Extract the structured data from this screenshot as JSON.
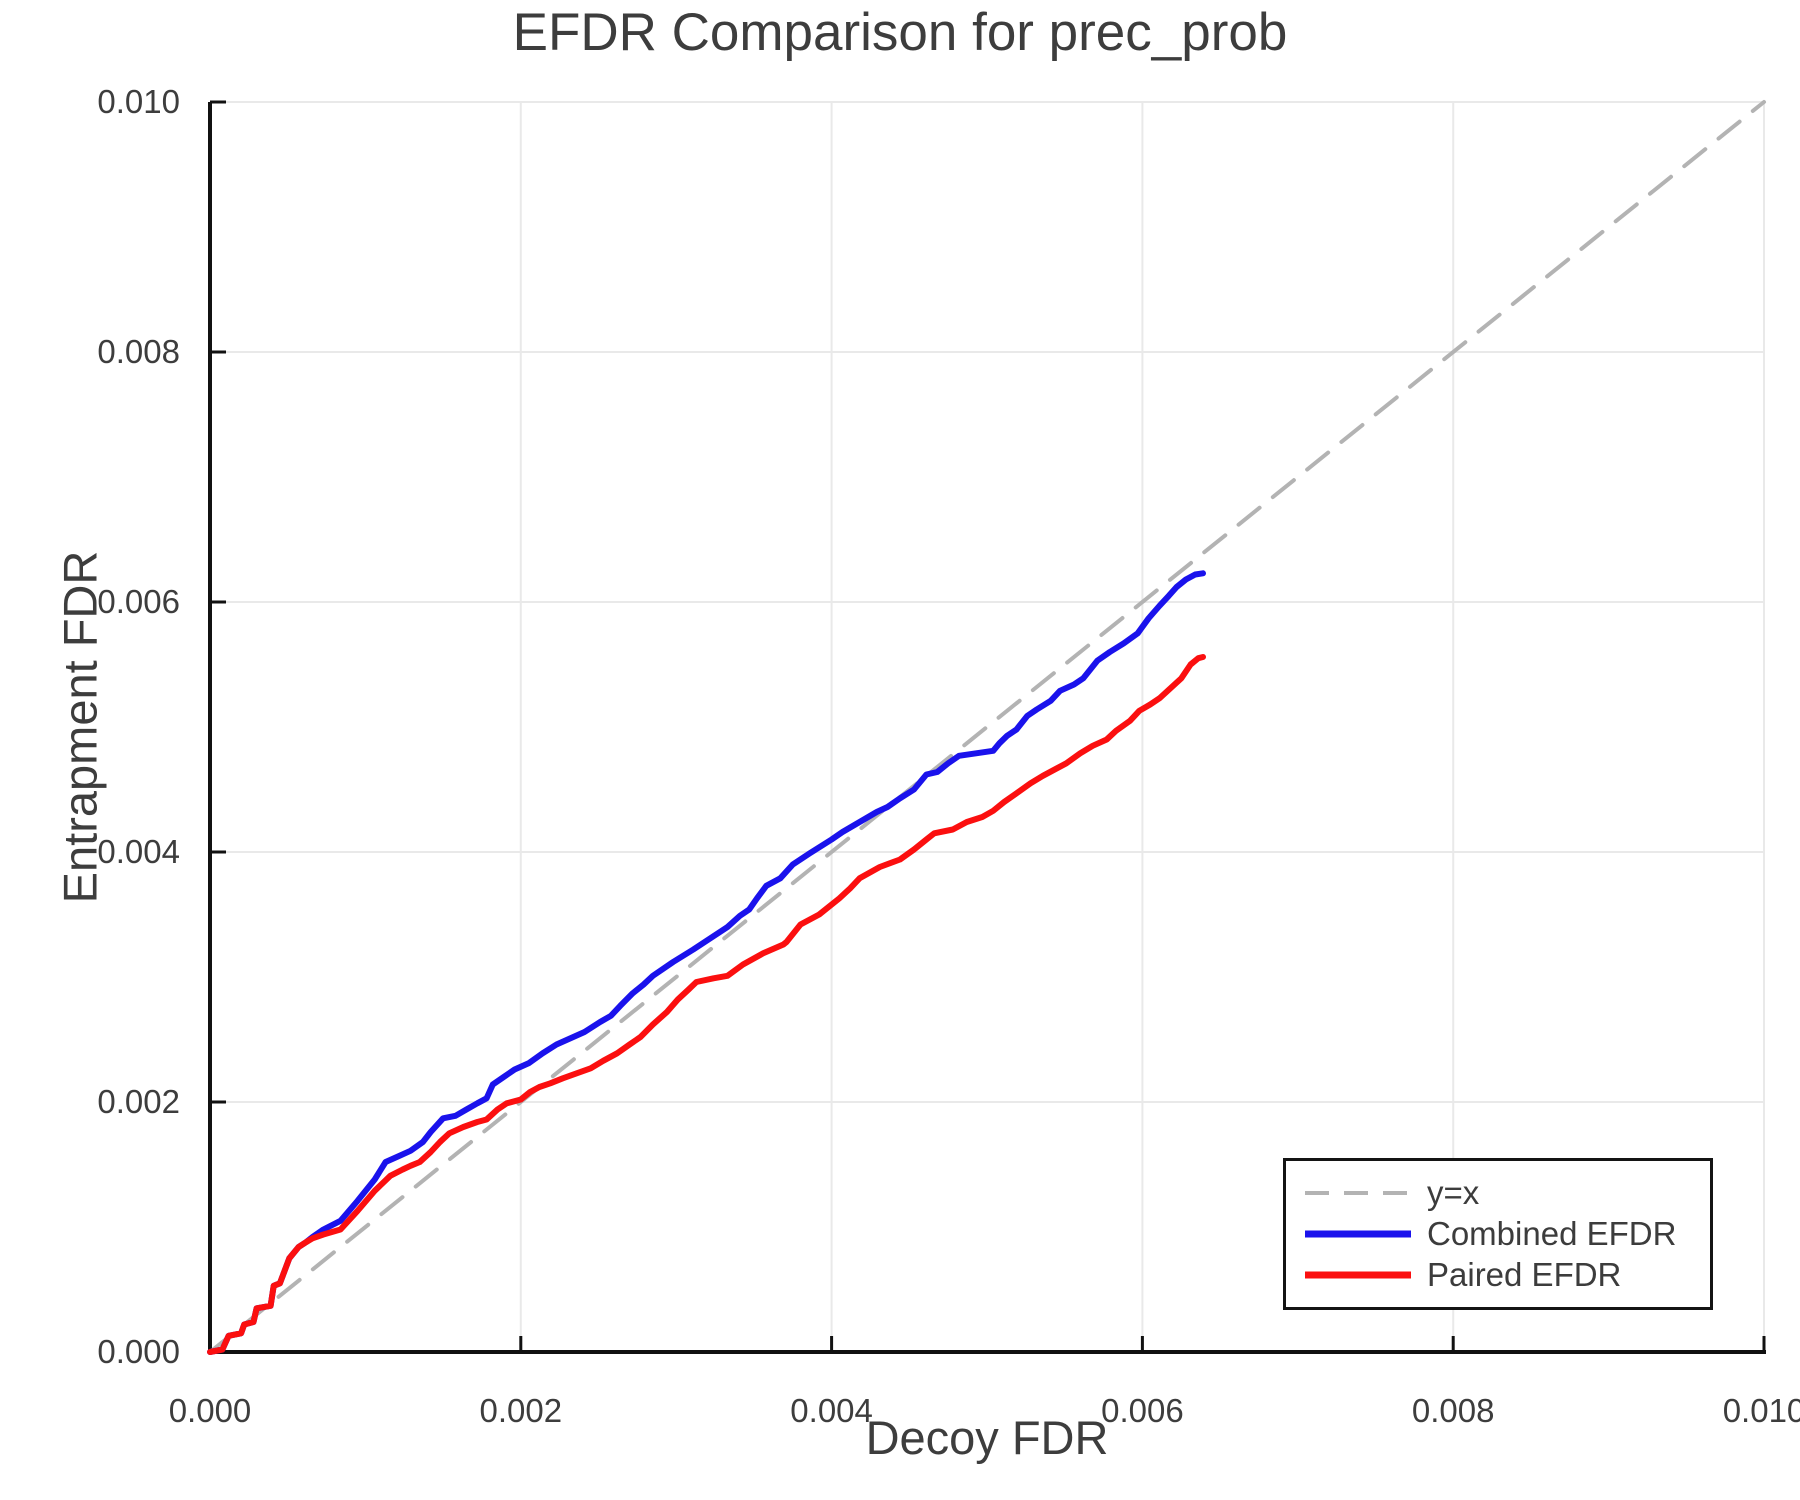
{
  "title": "EFDR Comparison for prec_prob",
  "colors": {
    "text": "#3d3d3d",
    "grid": "#e9e9e9",
    "axis": "#111111",
    "diagonal": "#b3b3b3",
    "combined": "#1a12ec",
    "paired": "#fb0f0f"
  },
  "chart_data": {
    "type": "line",
    "title": "EFDR Comparison for prec_prob",
    "xlabel": "Decoy FDR",
    "ylabel": "Entrapment FDR",
    "xlim": [
      0.0,
      0.01
    ],
    "ylim": [
      0.0,
      0.01
    ],
    "xticks": [
      "0.000",
      "0.002",
      "0.004",
      "0.006",
      "0.008",
      "0.010"
    ],
    "yticks": [
      "0.000",
      "0.002",
      "0.004",
      "0.006",
      "0.008",
      "0.010"
    ],
    "grid": true,
    "legend_position": "lower right",
    "series": [
      {
        "name": "y=x",
        "style": "dashed",
        "color": "#b3b3b3",
        "width": 4,
        "dash": "27 17",
        "points": [
          [
            0.0,
            0.0
          ],
          [
            0.01,
            0.01
          ]
        ]
      },
      {
        "name": "Combined EFDR",
        "style": "solid",
        "color": "#1a12ec",
        "width": 6,
        "dash": null,
        "points": [
          [
            0.0,
            0.0
          ],
          [
            8e-05,
            2e-05
          ],
          [
            0.00012,
            0.00013
          ],
          [
            0.0002,
            0.00015
          ],
          [
            0.00022,
            0.00022
          ],
          [
            0.00028,
            0.00024
          ],
          [
            0.0003,
            0.00035
          ],
          [
            0.00039,
            0.00037
          ],
          [
            0.00041,
            0.00053
          ],
          [
            0.00045,
            0.00055
          ],
          [
            0.00051,
            0.00075
          ],
          [
            0.00057,
            0.00084
          ],
          [
            0.00062,
            0.00088
          ],
          [
            0.00066,
            0.00092
          ],
          [
            0.00073,
            0.00098
          ],
          [
            0.00084,
            0.00105
          ],
          [
            0.00095,
            0.00121
          ],
          [
            0.00106,
            0.00138
          ],
          [
            0.00113,
            0.00152
          ],
          [
            0.00122,
            0.00157
          ],
          [
            0.00129,
            0.00161
          ],
          [
            0.00137,
            0.00168
          ],
          [
            0.00142,
            0.00176
          ],
          [
            0.0015,
            0.00187
          ],
          [
            0.00158,
            0.00189
          ],
          [
            0.00165,
            0.00194
          ],
          [
            0.00172,
            0.00199
          ],
          [
            0.00178,
            0.00203
          ],
          [
            0.00182,
            0.00214
          ],
          [
            0.00189,
            0.0022
          ],
          [
            0.00196,
            0.00226
          ],
          [
            0.00205,
            0.00231
          ],
          [
            0.00214,
            0.00239
          ],
          [
            0.00223,
            0.00246
          ],
          [
            0.00232,
            0.00251
          ],
          [
            0.00241,
            0.00256
          ],
          [
            0.00251,
            0.00264
          ],
          [
            0.00258,
            0.00269
          ],
          [
            0.00264,
            0.00277
          ],
          [
            0.00272,
            0.00287
          ],
          [
            0.00279,
            0.00294
          ],
          [
            0.00285,
            0.00301
          ],
          [
            0.00298,
            0.00312
          ],
          [
            0.00311,
            0.00322
          ],
          [
            0.00322,
            0.00331
          ],
          [
            0.00333,
            0.0034
          ],
          [
            0.00341,
            0.00349
          ],
          [
            0.00347,
            0.00354
          ],
          [
            0.00352,
            0.00363
          ],
          [
            0.00358,
            0.00373
          ],
          [
            0.00367,
            0.00379
          ],
          [
            0.00375,
            0.0039
          ],
          [
            0.00386,
            0.00399
          ],
          [
            0.004,
            0.0041
          ],
          [
            0.00407,
            0.00416
          ],
          [
            0.00418,
            0.00424
          ],
          [
            0.00429,
            0.00432
          ],
          [
            0.00436,
            0.00436
          ],
          [
            0.00444,
            0.00443
          ],
          [
            0.00453,
            0.0045
          ],
          [
            0.00461,
            0.00462
          ],
          [
            0.00468,
            0.00464
          ],
          [
            0.00475,
            0.00471
          ],
          [
            0.00482,
            0.00477
          ],
          [
            0.00493,
            0.00479
          ],
          [
            0.00504,
            0.00481
          ],
          [
            0.00508,
            0.00487
          ],
          [
            0.00513,
            0.00493
          ],
          [
            0.00519,
            0.00498
          ],
          [
            0.00526,
            0.00509
          ],
          [
            0.00532,
            0.00514
          ],
          [
            0.00541,
            0.00521
          ],
          [
            0.00547,
            0.00529
          ],
          [
            0.00556,
            0.00534
          ],
          [
            0.00562,
            0.00539
          ],
          [
            0.00571,
            0.00553
          ],
          [
            0.00579,
            0.0056
          ],
          [
            0.00588,
            0.00567
          ],
          [
            0.00597,
            0.00575
          ],
          [
            0.00604,
            0.00587
          ],
          [
            0.00611,
            0.00597
          ],
          [
            0.00617,
            0.00605
          ],
          [
            0.00622,
            0.00612
          ],
          [
            0.00628,
            0.00618
          ],
          [
            0.00634,
            0.00622
          ],
          [
            0.00639,
            0.00623
          ]
        ]
      },
      {
        "name": "Paired EFDR",
        "style": "solid",
        "color": "#fb0f0f",
        "width": 6,
        "dash": null,
        "points": [
          [
            0.0,
            0.0
          ],
          [
            8e-05,
            2e-05
          ],
          [
            0.00012,
            0.00013
          ],
          [
            0.0002,
            0.00015
          ],
          [
            0.00022,
            0.00022
          ],
          [
            0.00028,
            0.00024
          ],
          [
            0.0003,
            0.00035
          ],
          [
            0.00039,
            0.00037
          ],
          [
            0.00041,
            0.00053
          ],
          [
            0.00045,
            0.00055
          ],
          [
            0.00051,
            0.00075
          ],
          [
            0.00057,
            0.00084
          ],
          [
            0.00062,
            0.00088
          ],
          [
            0.00066,
            0.00091
          ],
          [
            0.00073,
            0.00094
          ],
          [
            0.00084,
            0.00098
          ],
          [
            0.00095,
            0.00113
          ],
          [
            0.00106,
            0.00129
          ],
          [
            0.00116,
            0.00141
          ],
          [
            0.00124,
            0.00146
          ],
          [
            0.00129,
            0.00149
          ],
          [
            0.00135,
            0.00152
          ],
          [
            0.00142,
            0.0016
          ],
          [
            0.00148,
            0.00168
          ],
          [
            0.00154,
            0.00175
          ],
          [
            0.00163,
            0.0018
          ],
          [
            0.00172,
            0.00184
          ],
          [
            0.00178,
            0.00186
          ],
          [
            0.00185,
            0.00194
          ],
          [
            0.00191,
            0.00199
          ],
          [
            0.002,
            0.00202
          ],
          [
            0.00206,
            0.00208
          ],
          [
            0.00212,
            0.00212
          ],
          [
            0.00219,
            0.00215
          ],
          [
            0.00227,
            0.00219
          ],
          [
            0.00236,
            0.00223
          ],
          [
            0.00245,
            0.00227
          ],
          [
            0.00253,
            0.00233
          ],
          [
            0.00262,
            0.00239
          ],
          [
            0.0027,
            0.00246
          ],
          [
            0.00277,
            0.00252
          ],
          [
            0.00285,
            0.00262
          ],
          [
            0.00294,
            0.00272
          ],
          [
            0.00301,
            0.00282
          ],
          [
            0.00308,
            0.0029
          ],
          [
            0.00313,
            0.00296
          ],
          [
            0.00324,
            0.00299
          ],
          [
            0.00333,
            0.00301
          ],
          [
            0.00343,
            0.0031
          ],
          [
            0.00356,
            0.00319
          ],
          [
            0.00369,
            0.00326
          ],
          [
            0.00371,
            0.00328
          ],
          [
            0.0038,
            0.00342
          ],
          [
            0.00392,
            0.0035
          ],
          [
            0.00405,
            0.00363
          ],
          [
            0.00412,
            0.00371
          ],
          [
            0.00418,
            0.00379
          ],
          [
            0.00431,
            0.00388
          ],
          [
            0.00444,
            0.00394
          ],
          [
            0.00453,
            0.00402
          ],
          [
            0.00461,
            0.0041
          ],
          [
            0.00466,
            0.00415
          ],
          [
            0.00478,
            0.00418
          ],
          [
            0.00487,
            0.00424
          ],
          [
            0.00497,
            0.00428
          ],
          [
            0.00504,
            0.00433
          ],
          [
            0.00511,
            0.0044
          ],
          [
            0.00519,
            0.00447
          ],
          [
            0.00528,
            0.00455
          ],
          [
            0.00536,
            0.00461
          ],
          [
            0.00545,
            0.00467
          ],
          [
            0.00551,
            0.00471
          ],
          [
            0.0056,
            0.00479
          ],
          [
            0.00568,
            0.00485
          ],
          [
            0.00577,
            0.0049
          ],
          [
            0.00583,
            0.00497
          ],
          [
            0.00592,
            0.00505
          ],
          [
            0.00598,
            0.00513
          ],
          [
            0.00605,
            0.00518
          ],
          [
            0.00611,
            0.00523
          ],
          [
            0.00618,
            0.00531
          ],
          [
            0.00625,
            0.00539
          ],
          [
            0.00631,
            0.0055
          ],
          [
            0.00636,
            0.00555
          ],
          [
            0.00639,
            0.00556
          ]
        ]
      }
    ]
  },
  "legend": {
    "items": [
      "y=x",
      "Combined EFDR",
      "Paired EFDR"
    ]
  }
}
